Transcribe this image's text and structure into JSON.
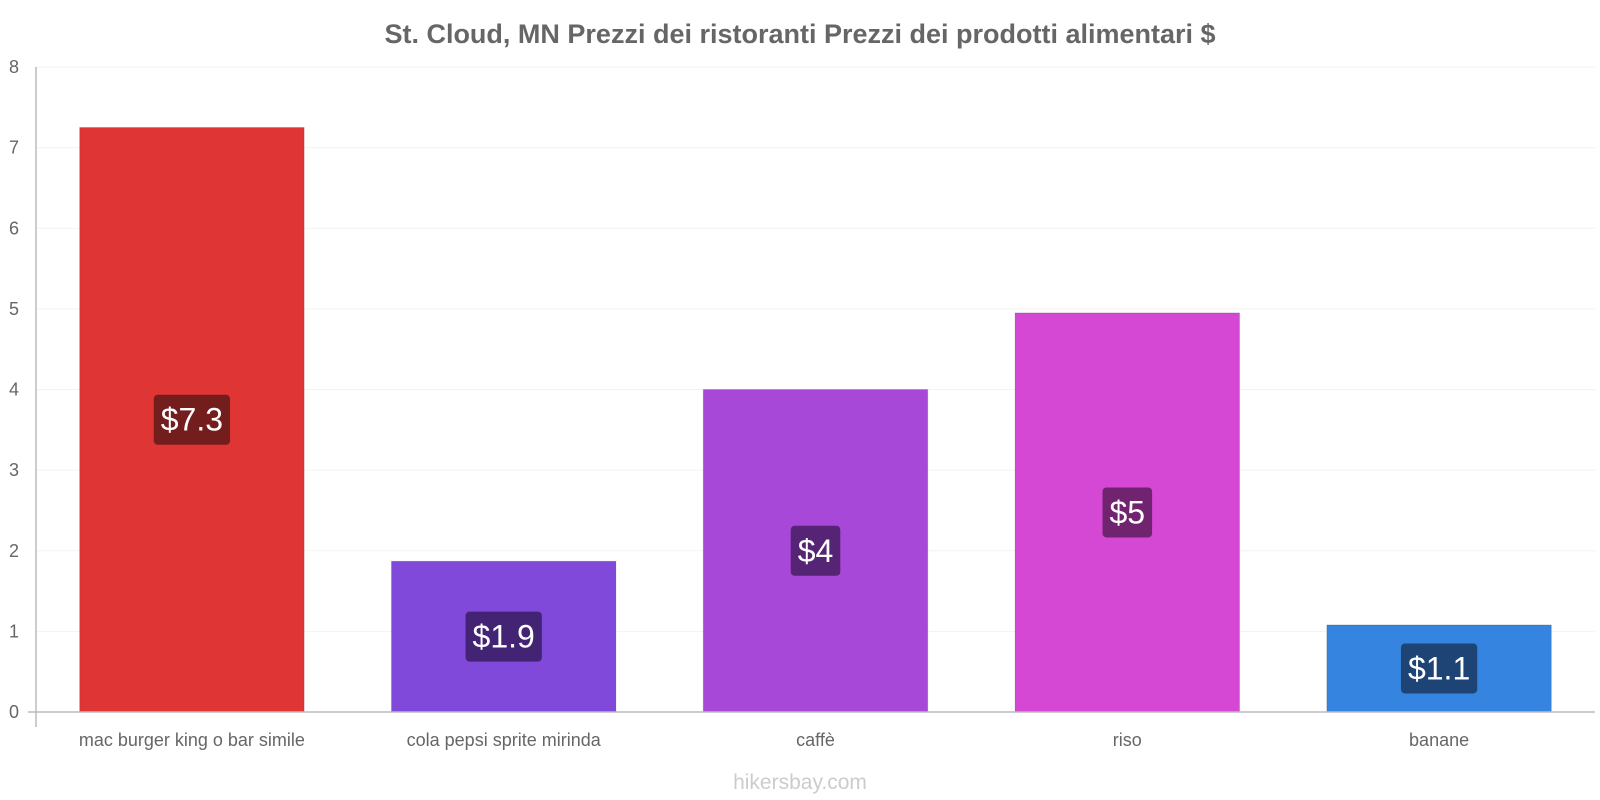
{
  "chart_data": {
    "type": "bar",
    "title": "St. Cloud, MN Prezzi dei ristoranti Prezzi dei prodotti alimentari $",
    "categories": [
      "mac burger king o bar simile",
      "cola pepsi sprite mirinda",
      "caffè",
      "riso",
      "banane"
    ],
    "values": [
      7.25,
      1.87,
      4.0,
      4.95,
      1.08
    ],
    "data_labels": [
      "$7.3",
      "$1.9",
      "$4",
      "$5",
      "$1.1"
    ],
    "colors": [
      "#e03535",
      "#8149d9",
      "#a748d9",
      "#d548d3",
      "#3584e0"
    ],
    "label_bg_colors": [
      "#741d1d",
      "#432474",
      "#562474",
      "#702470",
      "#1d4474"
    ],
    "ylim": [
      0,
      8
    ],
    "yticks": [
      0,
      1,
      2,
      3,
      4,
      5,
      6,
      7,
      8
    ],
    "ytick_labels": [
      "0",
      "1",
      "2",
      "3",
      "4",
      "5",
      "6",
      "7",
      "8"
    ],
    "xlabel": "",
    "ylabel": "",
    "grid": true,
    "legend": "none"
  },
  "footer": "hikersbay.com"
}
